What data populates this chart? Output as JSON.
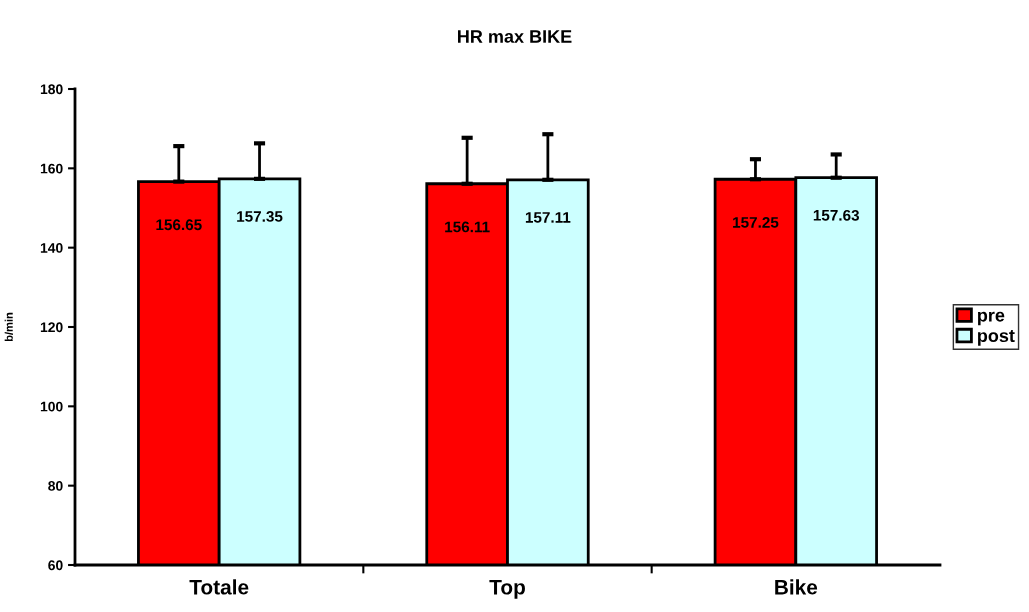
{
  "chart_data": {
    "type": "bar",
    "title": "HR max BIKE",
    "ylabel": "b/min",
    "categories": [
      "Totale",
      "Top",
      "Bike"
    ],
    "series": [
      {
        "name": "pre",
        "color": "#ff0000",
        "values": [
          156.65,
          156.11,
          157.25
        ],
        "errors": [
          [
            156.65,
            165.6
          ],
          [
            156.11,
            167.7
          ],
          [
            157.25,
            162.3
          ]
        ]
      },
      {
        "name": "post",
        "color": "#ccffff",
        "values": [
          157.35,
          157.11,
          157.63
        ],
        "errors": [
          [
            157.35,
            166.3
          ],
          [
            157.11,
            168.6
          ],
          [
            157.63,
            163.5
          ]
        ]
      }
    ],
    "ylim": [
      60,
      180
    ],
    "yticks": [
      60,
      80,
      100,
      120,
      140,
      160,
      180
    ],
    "data_labels": true,
    "grid": false,
    "legend": "right"
  }
}
